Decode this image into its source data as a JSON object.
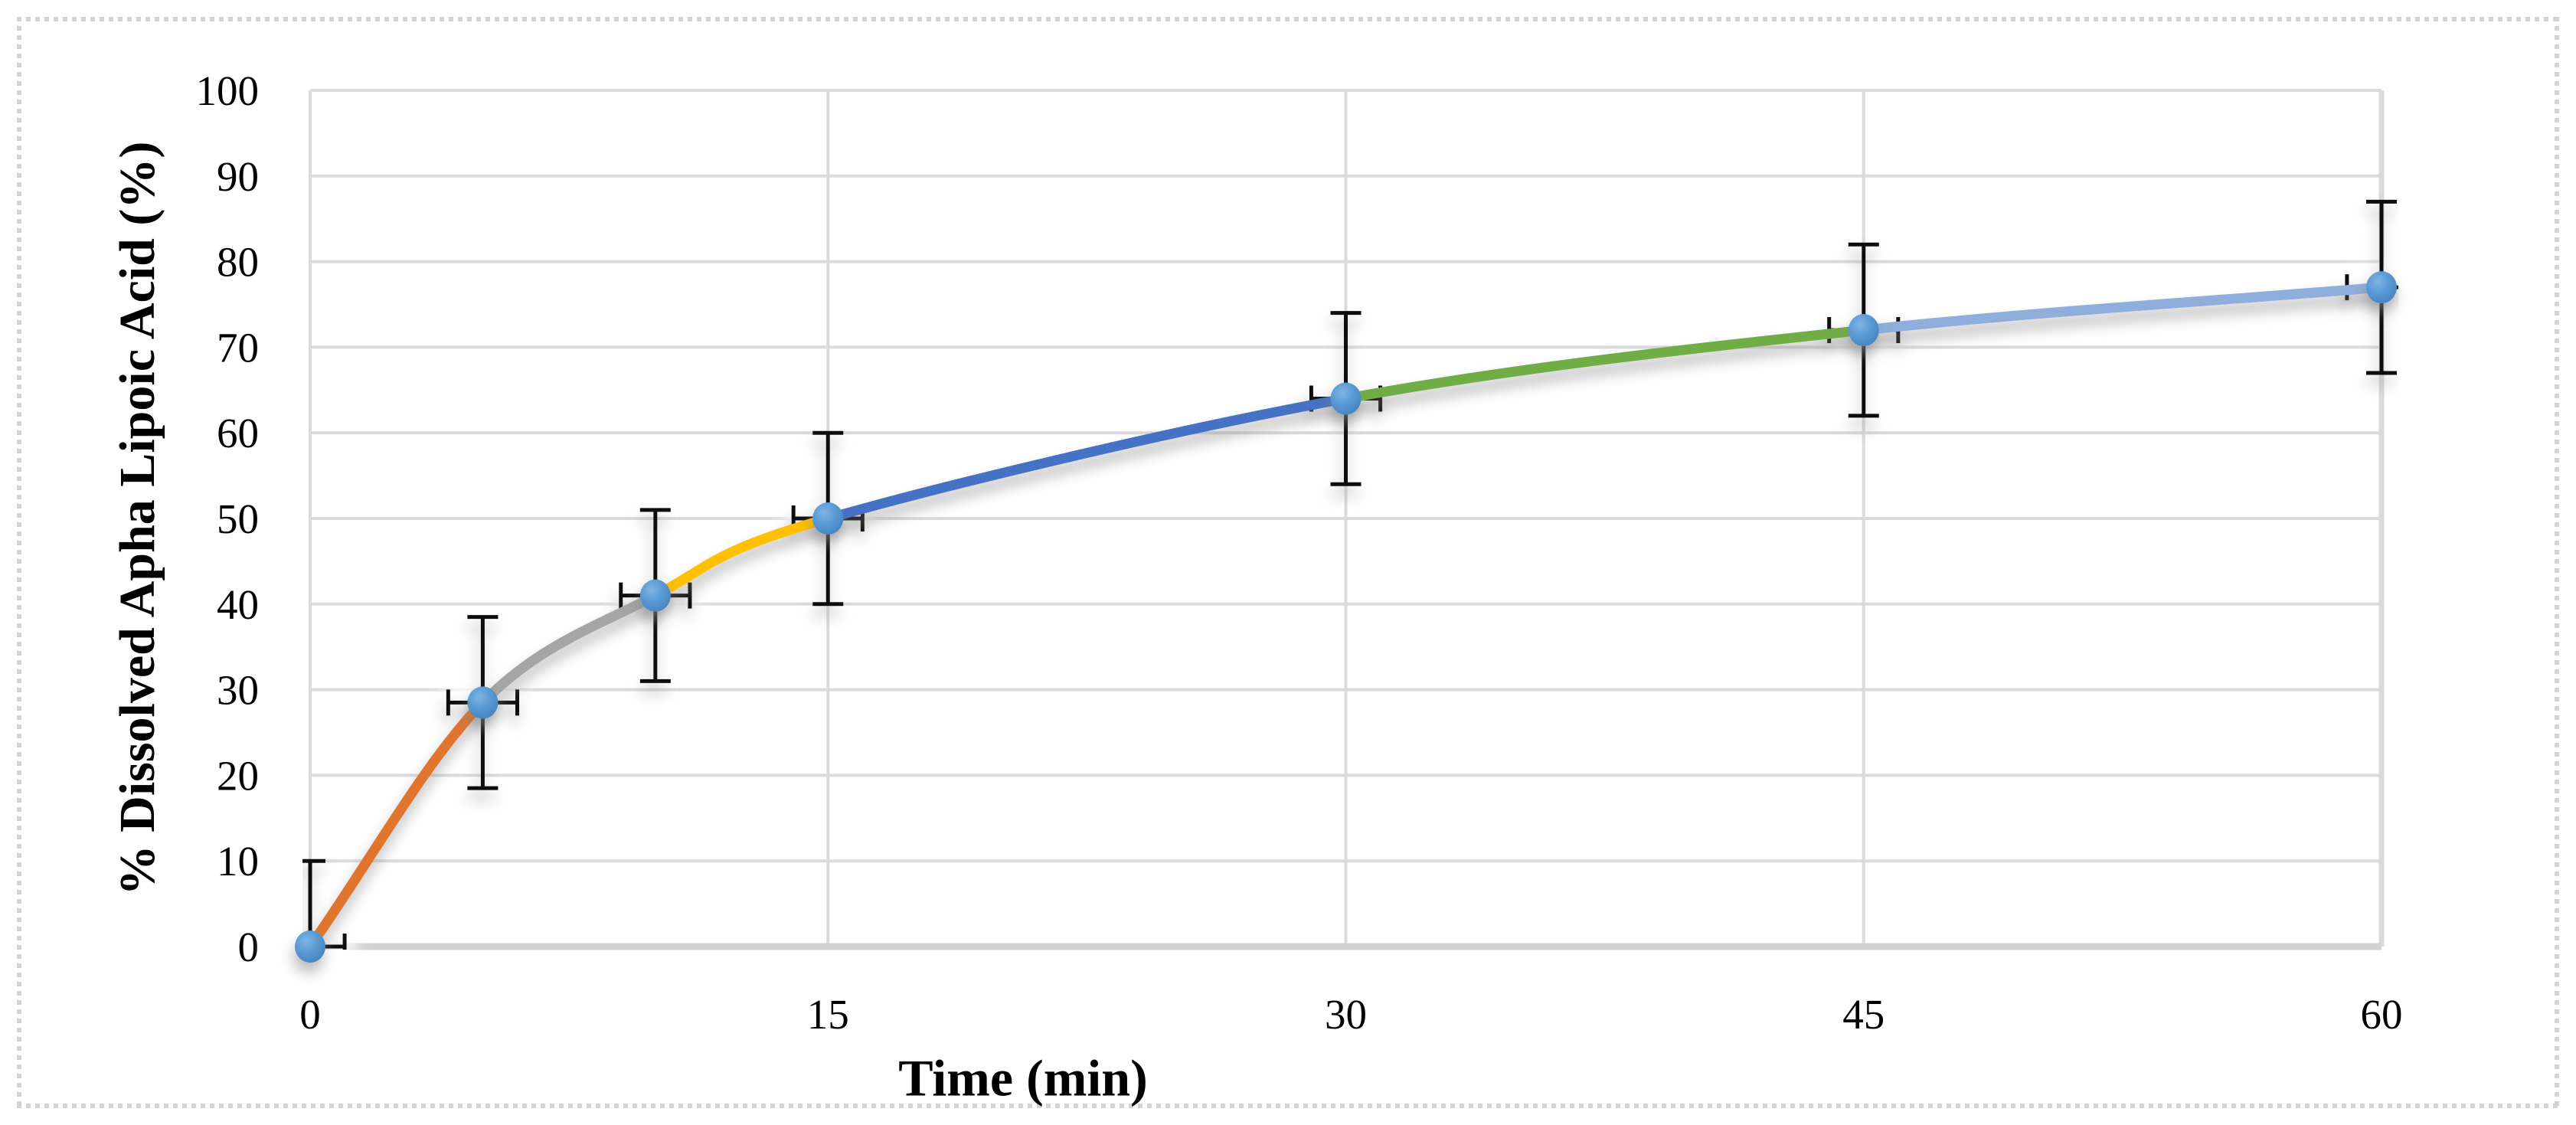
{
  "chart_data": {
    "type": "line",
    "title": "",
    "xlabel": "Time (min)",
    "ylabel": "% Dissolved Apha Lipoic Acid (%)",
    "x": [
      0,
      5,
      10,
      15,
      30,
      45,
      60
    ],
    "series": [
      {
        "name": "% Dissolved Alpha Lipoic Acid",
        "values": [
          0,
          28.5,
          41,
          50,
          64,
          72,
          77
        ]
      }
    ],
    "y_error": [
      10,
      10,
      10,
      10,
      10,
      10,
      10
    ],
    "x_error": [
      1,
      1,
      1,
      1,
      1,
      1,
      1
    ],
    "xlim": [
      0,
      60
    ],
    "ylim": [
      0,
      100
    ],
    "xticks": [
      0,
      15,
      30,
      45,
      60
    ],
    "yticks": [
      0,
      10,
      20,
      30,
      40,
      50,
      60,
      70,
      80,
      90,
      100
    ],
    "grid": true,
    "legend": "none",
    "smooth": true,
    "segment_colors": [
      "#E0752F",
      "#A5A5A5",
      "#FFC000",
      "#4472C4",
      "#70AD47",
      "#8FAEDC"
    ],
    "marker": {
      "shape": "circle",
      "color": "#5B9BD5",
      "highlight": "#7FB5E6",
      "edge": "#4380BC"
    },
    "gridline_color": "#DBDBDB",
    "axis_line_color": "#D2D2D2",
    "error_bar_color": "#111111",
    "frame_color": "#D3D3D3",
    "text_color": "#000000"
  }
}
